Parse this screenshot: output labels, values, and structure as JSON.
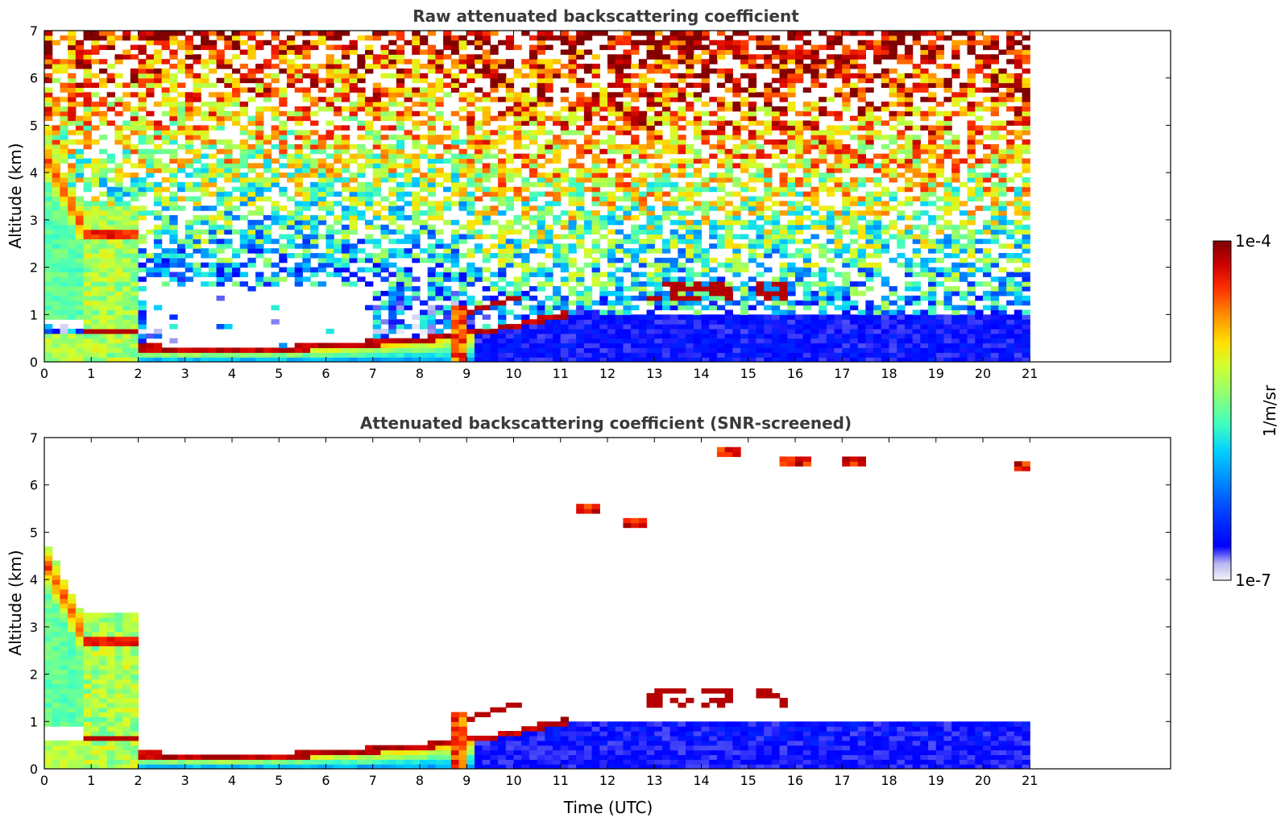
{
  "chart_data": [
    {
      "type": "heatmap",
      "title": "Raw attenuated backscattering coefficient",
      "xlabel": "",
      "ylabel": "Altitude (km)",
      "xlim": [
        0,
        24
      ],
      "ylim": [
        0,
        7
      ],
      "x_ticks": [
        0,
        1,
        2,
        3,
        4,
        5,
        6,
        7,
        8,
        9,
        10,
        11,
        12,
        13,
        14,
        15,
        16,
        17,
        18,
        19,
        20,
        21
      ],
      "y_ticks": [
        0,
        1,
        2,
        3,
        4,
        5,
        6,
        7
      ],
      "data_extent_x": [
        0,
        21
      ],
      "screened": false,
      "features": [
        {
          "type": "boundary_layer_top",
          "points": [
            [
              2.0,
              0.3
            ],
            [
              3,
              0.28
            ],
            [
              4,
              0.26
            ],
            [
              5,
              0.28
            ],
            [
              6,
              0.32
            ],
            [
              7,
              0.4
            ],
            [
              8,
              0.48
            ],
            [
              8.7,
              0.55
            ],
            [
              9,
              0.6
            ],
            [
              10,
              0.75
            ],
            [
              11,
              1.0
            ]
          ]
        },
        {
          "type": "low_cloud",
          "points": [
            [
              0.8,
              0.6
            ],
            [
              2.0,
              0.65
            ]
          ]
        },
        {
          "type": "cloud_layer",
          "points": [
            [
              9.0,
              1.0
            ],
            [
              10.0,
              1.4
            ]
          ]
        },
        {
          "type": "descending_layer",
          "points": [
            [
              0,
              4.4
            ],
            [
              0.5,
              3.5
            ],
            [
              0.8,
              2.9
            ],
            [
              2.0,
              2.7
            ]
          ]
        },
        {
          "type": "cirrus_patches",
          "points": [
            [
              11.6,
              5.5
            ],
            [
              12.6,
              5.2
            ],
            [
              14.6,
              6.7
            ],
            [
              16,
              6.5
            ],
            [
              17.2,
              6.5
            ],
            [
              20.9,
              6.4
            ]
          ]
        },
        {
          "type": "mid_cloud",
          "points": [
            [
              13,
              1.5
            ],
            [
              14.5,
              1.6
            ],
            [
              15,
              1.45
            ],
            [
              15.8,
              1.5
            ]
          ]
        }
      ]
    },
    {
      "type": "heatmap",
      "title": "Attenuated backscattering coefficient (SNR-screened)",
      "xlabel": "Time (UTC)",
      "ylabel": "Altitude (km)",
      "xlim": [
        0,
        24
      ],
      "ylim": [
        0,
        7
      ],
      "x_ticks": [
        0,
        1,
        2,
        3,
        4,
        5,
        6,
        7,
        8,
        9,
        10,
        11,
        12,
        13,
        14,
        15,
        16,
        17,
        18,
        19,
        20,
        21
      ],
      "y_ticks": [
        0,
        1,
        2,
        3,
        4,
        5,
        6,
        7
      ],
      "data_extent_x": [
        0,
        21
      ],
      "screened": true
    }
  ],
  "colorbar": {
    "label": "1/m/sr",
    "min_label": "1e-7",
    "max_label": "1e-4",
    "scale": "log",
    "range": [
      1e-07,
      0.0001
    ],
    "colormap": [
      "#f5f5fc",
      "#b6b6f0",
      "#0000ff",
      "#0040ff",
      "#0090ff",
      "#00d0ff",
      "#40ffc0",
      "#90ff70",
      "#d0ff30",
      "#ffe000",
      "#ff9000",
      "#ff3000",
      "#d00000",
      "#800000"
    ]
  }
}
